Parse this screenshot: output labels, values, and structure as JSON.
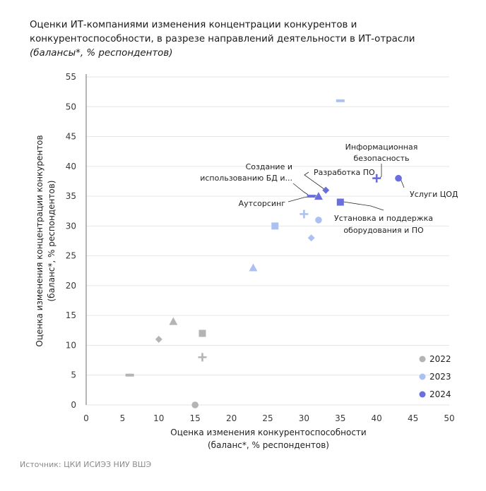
{
  "title": {
    "line1": "Оценки ИТ-компаниями изменения концентрации конкурентов и",
    "line2": "конкурентоспособности, в разрезе направлений деятельности в ИТ-отрасли",
    "subtitle": "(балансы*, % респондентов)"
  },
  "source": "Источник: ЦКИ ИСИЭЗ НИУ ВШЭ",
  "colors": {
    "2022": "#b4b4b4",
    "2023": "#adc0f2",
    "2024": "#6b6fde"
  },
  "chart_data": {
    "type": "scatter",
    "xlabel": [
      "Оценка изменения конкурентоспособности",
      "(баланс*, % респондентов)"
    ],
    "ylabel": [
      "Оценка изменения концентрации конкурентов",
      "(баланс*, % респондентов)"
    ],
    "xlim": [
      0,
      50
    ],
    "ylim": [
      0,
      55
    ],
    "xticks": [
      0,
      5,
      10,
      15,
      20,
      25,
      30,
      35,
      40,
      45,
      50
    ],
    "yticks": [
      0,
      5,
      10,
      15,
      20,
      25,
      30,
      35,
      40,
      45,
      50,
      55
    ],
    "grid": "horizontal",
    "legend_position": "bottom-right",
    "series": [
      {
        "name": "2022",
        "points": [
          {
            "x": 15,
            "y": 0,
            "marker": "circle"
          },
          {
            "x": 6,
            "y": 5,
            "marker": "dash"
          },
          {
            "x": 16,
            "y": 8,
            "marker": "plus"
          },
          {
            "x": 10,
            "y": 11,
            "marker": "diamond"
          },
          {
            "x": 16,
            "y": 12,
            "marker": "square"
          },
          {
            "x": 12,
            "y": 14,
            "marker": "triangle"
          }
        ]
      },
      {
        "name": "2023",
        "points": [
          {
            "x": 23,
            "y": 23,
            "marker": "triangle"
          },
          {
            "x": 31,
            "y": 28,
            "marker": "diamond"
          },
          {
            "x": 26,
            "y": 30,
            "marker": "square"
          },
          {
            "x": 32,
            "y": 31,
            "marker": "circle"
          },
          {
            "x": 30,
            "y": 32,
            "marker": "plus"
          },
          {
            "x": 35,
            "y": 51,
            "marker": "dash"
          }
        ]
      },
      {
        "name": "2024",
        "points": [
          {
            "x": 31,
            "y": 35,
            "marker": "dash"
          },
          {
            "x": 32,
            "y": 35,
            "marker": "triangle"
          },
          {
            "x": 33,
            "y": 36,
            "marker": "diamond"
          },
          {
            "x": 35,
            "y": 34,
            "marker": "square"
          },
          {
            "x": 40,
            "y": 38,
            "marker": "plus"
          },
          {
            "x": 43,
            "y": 38,
            "marker": "circle"
          }
        ]
      }
    ],
    "annotations": [
      {
        "lines": [
          "Информационная",
          "безопасность"
        ],
        "anchor": "middle",
        "target": {
          "x": 40,
          "y": 38
        }
      },
      {
        "lines": [
          "Создание и",
          "использованию БД и..."
        ],
        "anchor": "end",
        "target": {
          "x": 31,
          "y": 35
        }
      },
      {
        "lines": [
          "Разработка ПО"
        ],
        "anchor": "start",
        "target": {
          "x": 33,
          "y": 36
        }
      },
      {
        "lines": [
          "Аутсорсинг"
        ],
        "anchor": "end",
        "target": {
          "x": 32,
          "y": 35
        }
      },
      {
        "lines": [
          "Услуги ЦОД"
        ],
        "anchor": "start",
        "target": {
          "x": 43,
          "y": 38
        }
      },
      {
        "lines": [
          "Установка и поддержка",
          "оборудования и ПО"
        ],
        "anchor": "middle",
        "target": {
          "x": 35,
          "y": 34
        }
      }
    ]
  }
}
